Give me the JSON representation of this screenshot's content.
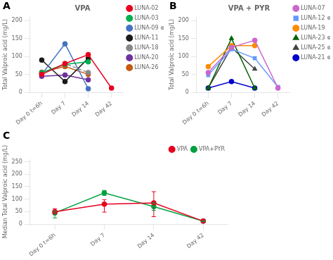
{
  "chart_data": [
    {
      "type": "line",
      "title": "VPA",
      "annotations": [
        "A"
      ],
      "ylabel": "Total Valproic acid (mg/L)",
      "categories": [
        "Day 0 t=6h",
        "Day 7",
        "Day 14",
        "Day 42"
      ],
      "ylim": [
        0,
        210
      ],
      "yticks": [
        0,
        50,
        100,
        150,
        200
      ],
      "grid": false,
      "legend": "right",
      "series": [
        {
          "name": "LUNA-02",
          "color": "#e8001d",
          "marker": "circle",
          "line_style": "solid",
          "values": [
            50,
            80,
            105,
            12
          ]
        },
        {
          "name": "LUNA-03",
          "color": "#00b050",
          "marker": "circle",
          "line_style": "solid",
          "values": [
            55,
            78,
            85,
            null
          ]
        },
        {
          "name": "LUNA-09 ⊗",
          "color": "#4472c4",
          "marker": "circle",
          "line_style": "solid",
          "values": [
            50,
            135,
            10,
            null
          ]
        },
        {
          "name": "LUNA-11",
          "color": "#1a1a1a",
          "marker": "circle",
          "line_style": "solid",
          "values": [
            90,
            30,
            95,
            null
          ]
        },
        {
          "name": "LUNA-18",
          "color": "#888888",
          "marker": "circle",
          "line_style": "dashed",
          "values": [
            52,
            80,
            55,
            null
          ]
        },
        {
          "name": "LUNA-20",
          "color": "#7030a0",
          "marker": "circle",
          "line_style": "solid",
          "values": [
            45,
            48,
            35,
            null
          ]
        },
        {
          "name": "LUNA-26",
          "color": "#c55a11",
          "marker": "circle",
          "line_style": "solid",
          "values": [
            56,
            72,
            50,
            null
          ]
        }
      ]
    },
    {
      "type": "line",
      "title": "VPA + PYR",
      "annotations": [
        "B"
      ],
      "ylabel": "Total Valproic acid (mg/L)",
      "categories": [
        "Day 0 t=6h",
        "Day 7",
        "Day 14",
        "Day 42"
      ],
      "ylim": [
        0,
        210
      ],
      "yticks": [
        0,
        50,
        100,
        150,
        200
      ],
      "grid": false,
      "legend": "right",
      "series": [
        {
          "name": "LUNA-07",
          "color": "#cc66cc",
          "marker": "circle",
          "line_style": "solid",
          "values": [
            55,
            125,
            145,
            12
          ]
        },
        {
          "name": "LUNA-12 ⊗",
          "color": "#6699ff",
          "marker": "square",
          "line_style": "solid",
          "values": [
            48,
            120,
            95,
            15
          ]
        },
        {
          "name": "LUNA-19",
          "color": "#ff8c00",
          "marker": "circle",
          "line_style": "solid",
          "values": [
            72,
            130,
            130,
            null
          ]
        },
        {
          "name": "LUNA-23 ⊗",
          "color": "#006400",
          "marker": "triangle",
          "line_style": "solid",
          "values": [
            12,
            150,
            12,
            null
          ]
        },
        {
          "name": "LUNA-25 ⊗",
          "color": "#444444",
          "marker": "triangle",
          "line_style": "solid",
          "values": [
            12,
            125,
            65,
            null
          ]
        },
        {
          "name": "LUNA-21 ⊗",
          "color": "#0000cc",
          "marker": "circle",
          "line_style": "solid",
          "values": [
            12,
            30,
            12,
            null
          ]
        }
      ]
    },
    {
      "type": "line",
      "annotations": [
        "C"
      ],
      "ylabel": "Median Total Valproic acid (mg/L)",
      "categories": [
        "Day 0 t=6h",
        "Day 7",
        "Day 14",
        "Day 42"
      ],
      "ylim": [
        0,
        260
      ],
      "yticks": [
        0,
        50,
        100,
        150,
        200,
        250
      ],
      "grid": false,
      "legend": "upper right",
      "series": [
        {
          "name": "VPA",
          "color": "#e8001d",
          "marker": "circle",
          "line_style": "solid",
          "values": [
            50,
            80,
            85,
            12
          ],
          "yerr_lo": [
            10,
            32,
            55,
            2
          ],
          "yerr_hi": [
            12,
            18,
            45,
            2
          ]
        },
        {
          "name": "VPA+PYR",
          "color": "#00a040",
          "marker": "circle",
          "line_style": "solid",
          "values": [
            45,
            125,
            70,
            12
          ],
          "yerr_lo": [
            20,
            10,
            15,
            2
          ],
          "yerr_hi": [
            8,
            10,
            15,
            2
          ]
        }
      ]
    }
  ]
}
